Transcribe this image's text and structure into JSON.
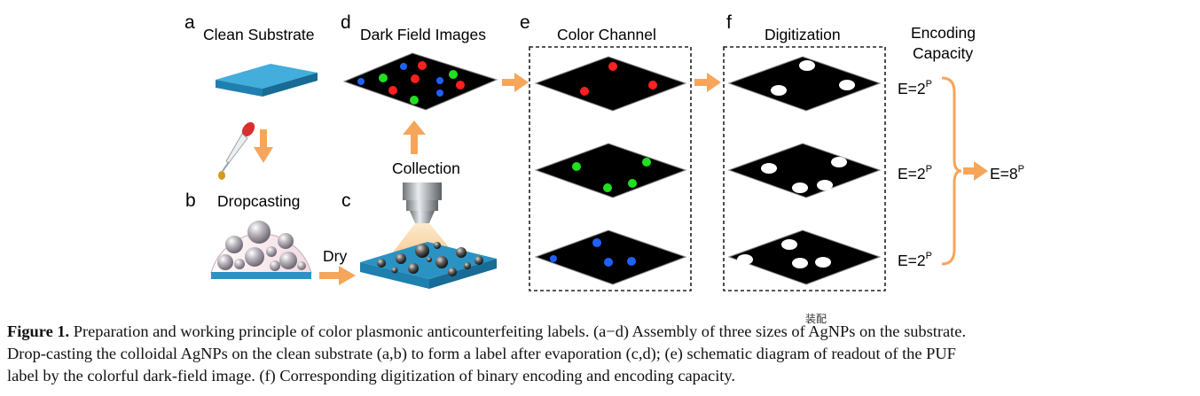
{
  "panels": {
    "a": {
      "letter": "a",
      "title": "Clean Substrate"
    },
    "b": {
      "letter": "b",
      "title": "Dropcasting"
    },
    "c": {
      "letter": "c",
      "dry_label": "Dry",
      "collection_label": "Collection"
    },
    "d": {
      "letter": "d",
      "title": "Dark Field Images"
    },
    "e": {
      "letter": "e",
      "title": "Color Channel"
    },
    "f": {
      "letter": "f",
      "title": "Digitization"
    },
    "encoding": {
      "title_line1": "Encoding",
      "title_line2": "Capacity",
      "rows": [
        {
          "base": "E=2",
          "exp": "P"
        },
        {
          "base": "E=2",
          "exp": "P"
        },
        {
          "base": "E=2",
          "exp": "P"
        }
      ],
      "total": {
        "base": "E=8",
        "exp": "P"
      }
    }
  },
  "stamp_text": "装配",
  "caption": {
    "label": "Figure 1.",
    "line1": " Preparation and working principle of color plasmonic anticounterfeiting labels. (a−d) Assembly of three sizes of AgNPs on the substrate.",
    "line2": "Drop-casting the colloidal AgNPs on the clean substrate (a,b) to form a label after evaporation (c,d); (e) schematic diagram of readout of the PUF",
    "line3": "label by the colorful dark-field image. (f) Corresponding digitization of binary encoding and encoding capacity."
  },
  "colors": {
    "substrate": "#2a93c4",
    "arrow": "#f5a65b",
    "red_dot": "#ff2020",
    "green_dot": "#20e020",
    "blue_dot": "#2060ff",
    "dark_field": "#000000"
  }
}
